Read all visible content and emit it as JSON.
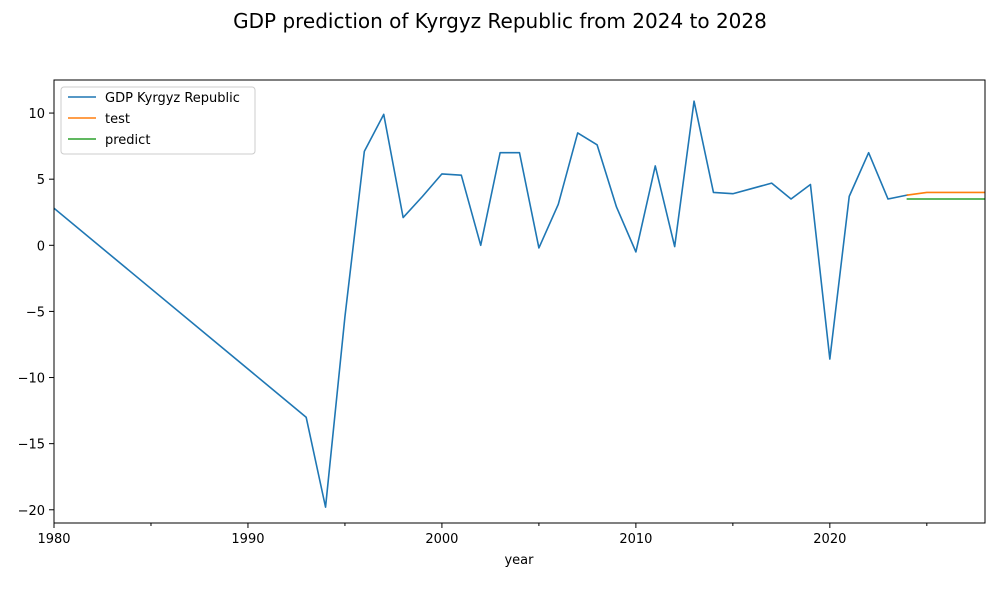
{
  "chart_data": {
    "type": "line",
    "title": "GDP prediction of Kyrgyz Republic from 2024 to 2028",
    "xlabel": "year",
    "ylabel": "",
    "xlim": [
      1980,
      2028
    ],
    "ylim": [
      -21,
      12.5
    ],
    "x_ticks": [
      1980,
      1990,
      2000,
      2010,
      2020
    ],
    "x_minor_ticks": [
      1985,
      1995,
      2005,
      2015,
      2025
    ],
    "y_ticks": [
      -20,
      -15,
      -10,
      -5,
      0,
      5,
      10
    ],
    "grid": false,
    "legend_position": "upper left",
    "series": [
      {
        "name": "GDP Kyrgyz Republic",
        "color": "#1f77b4",
        "points": [
          [
            1980,
            2.8
          ],
          [
            1993,
            -13.0
          ],
          [
            1994,
            -19.8
          ],
          [
            1995,
            -5.4
          ],
          [
            1996,
            7.1
          ],
          [
            1997,
            9.9
          ],
          [
            1998,
            2.1
          ],
          [
            1999,
            3.7
          ],
          [
            2000,
            5.4
          ],
          [
            2001,
            5.3
          ],
          [
            2002,
            0.0
          ],
          [
            2003,
            7.0
          ],
          [
            2004,
            7.0
          ],
          [
            2005,
            -0.2
          ],
          [
            2006,
            3.1
          ],
          [
            2007,
            8.5
          ],
          [
            2008,
            7.6
          ],
          [
            2009,
            2.9
          ],
          [
            2010,
            -0.5
          ],
          [
            2011,
            6.0
          ],
          [
            2012,
            -0.1
          ],
          [
            2013,
            10.9
          ],
          [
            2014,
            4.0
          ],
          [
            2015,
            3.9
          ],
          [
            2016,
            4.3
          ],
          [
            2017,
            4.7
          ],
          [
            2018,
            3.5
          ],
          [
            2019,
            4.6
          ],
          [
            2020,
            -8.6
          ],
          [
            2021,
            3.7
          ],
          [
            2022,
            7.0
          ],
          [
            2023,
            3.5
          ],
          [
            2024,
            3.8
          ]
        ]
      },
      {
        "name": "test",
        "color": "#ff7f0e",
        "points": [
          [
            2024,
            3.8
          ],
          [
            2025,
            4.0
          ],
          [
            2026,
            4.0
          ],
          [
            2027,
            4.0
          ],
          [
            2028,
            4.0
          ]
        ]
      },
      {
        "name": "predict",
        "color": "#2ca02c",
        "points": [
          [
            2024,
            3.5
          ],
          [
            2025,
            3.5
          ],
          [
            2026,
            3.5
          ],
          [
            2027,
            3.5
          ],
          [
            2028,
            3.5
          ]
        ]
      }
    ]
  }
}
